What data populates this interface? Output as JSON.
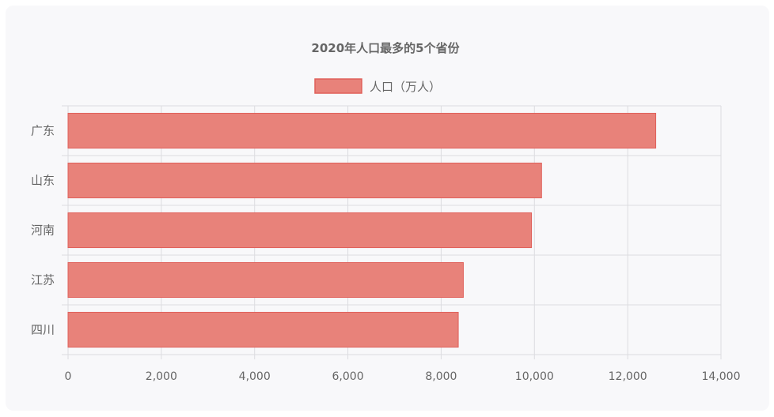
{
  "chart_data": {
    "type": "bar",
    "orientation": "horizontal",
    "title": "2020年人口最多的5个省份",
    "categories": [
      "广东",
      "山东",
      "河南",
      "江苏",
      "四川"
    ],
    "series": [
      {
        "name": "人口（万人）",
        "values": [
          12601,
          10153,
          9937,
          8475,
          8367
        ]
      }
    ],
    "xlim": [
      0,
      14000
    ],
    "x_ticks": [
      "0",
      "2,000",
      "4,000",
      "6,000",
      "8,000",
      "10,000",
      "12,000",
      "14,000"
    ],
    "grid": true,
    "legend_position": "top",
    "colors": {
      "bar_fill": "#e8827a",
      "bar_stroke": "#e0605a",
      "grid": "#dcdce0",
      "text": "#666666"
    }
  }
}
